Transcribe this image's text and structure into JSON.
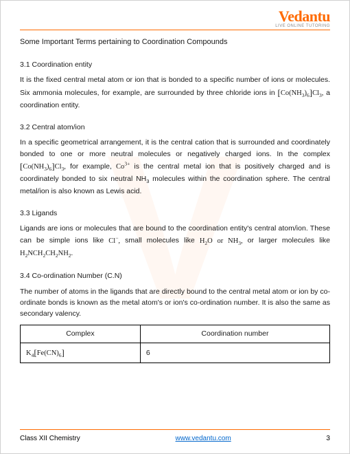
{
  "brand": {
    "name": "Vedantu",
    "tagline": "LIVE ONLINE TUTORING"
  },
  "title": "Some Important Terms pertaining to Coordination Compounds",
  "sections": {
    "s1": {
      "heading": "3.1 Coordination entity",
      "text": "It is the fixed central metal atom or ion that is bonded to a specific number of ions or molecules. Six ammonia molecules, for example, are surrounded by three chloride ions in [Co(NH₃)₆]Cl₃, a coordination entity."
    },
    "s2": {
      "heading": "3.2 Central atom/ion",
      "text": "In a specific geometrical arrangement, it is the central cation that is surrounded and coordinately bonded to one or more neutral molecules or negatively charged ions. In the complex [Co(NH₃)₆]Cl₃, for example, Co³⁺ is the central metal ion that is positively charged and is coordinately bonded to six neutral NH₃ molecules within the coordination sphere. The central metal/ion is also known as Lewis acid."
    },
    "s3": {
      "heading": "3.3 Ligands",
      "text": "Ligands are ions or molecules that are bound to the coordination entity's central atom/ion. These can be simple ions like Cl⁻, small molecules like H₂O or NH₃, or larger molecules like H₂NCH₂CH₂NH₂."
    },
    "s4": {
      "heading": "3.4 Co-ordination Number (C.N)",
      "text": "The number of atoms in the ligands that are directly bound to the central metal atom or ion by co-ordinate bonds is known as the metal atom's or ion's co-ordination number. It is also the same as secondary valency."
    }
  },
  "table": {
    "headers": {
      "c1": "Complex",
      "c2": "Coordination number"
    },
    "rows": {
      "r1": {
        "complex": "K₄[Fe(CN)₆]",
        "cn": "6"
      }
    }
  },
  "footer": {
    "left": "Class XII Chemistry",
    "link": "www.vedantu.com",
    "page": "3"
  },
  "colors": {
    "accent": "#ff6a00",
    "text": "#1a1a1a",
    "link": "#0066cc"
  }
}
